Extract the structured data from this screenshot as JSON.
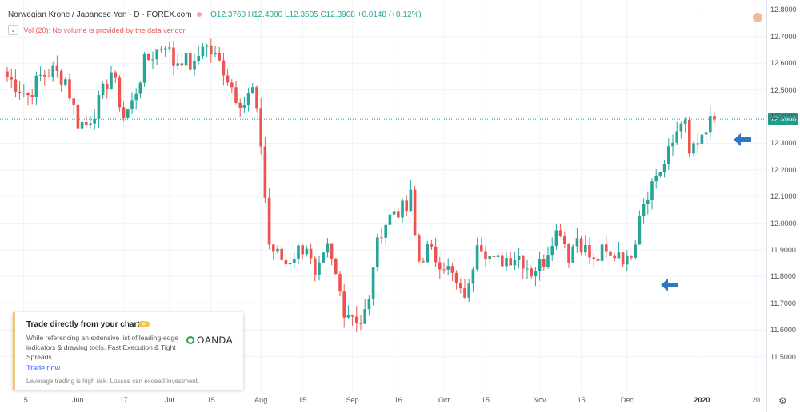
{
  "header": {
    "title": "Norwegian Krone / Japanese Yen · D · FOREX.com",
    "ohlc": "O12.3760 H12.4080 L12.3505 C12.3908 +0.0148 (+0.12%)",
    "volume_label": "Vol (20): No volume is provided by the data vendor."
  },
  "price_label": "12.3908",
  "ad": {
    "title": "Trade directly from your charts",
    "badge": "ad",
    "body": "While referencing an extensive list of leading-edge indicators & drawing tools. Fast Execution & Tight Spreads",
    "brand": "OANDA",
    "cta": "Trade now",
    "disclaimer": "Leverage trading is high risk. Losses can exceed investment."
  },
  "colors": {
    "up": "#26a69a",
    "down": "#ef5350",
    "arrow": "#2b79c2",
    "price_line": "#1f9c8a",
    "grid": "#f0f3fa"
  },
  "chart_data": {
    "type": "candlestick",
    "title": "Norwegian Krone / Japanese Yen",
    "ylim": [
      11.43,
      12.88
    ],
    "yticks": [
      11.5,
      11.6,
      11.7,
      11.8,
      11.9,
      12.0,
      12.1,
      12.2,
      12.3,
      12.4,
      12.5,
      12.6,
      12.7,
      12.8
    ],
    "xticks": [
      {
        "label": "15",
        "i": 4
      },
      {
        "label": "Jun",
        "i": 17
      },
      {
        "label": "17",
        "i": 28
      },
      {
        "label": "Jul",
        "i": 39
      },
      {
        "label": "15",
        "i": 49
      },
      {
        "label": "Aug",
        "i": 61
      },
      {
        "label": "15",
        "i": 71
      },
      {
        "label": "Sep",
        "i": 83
      },
      {
        "label": "16",
        "i": 94
      },
      {
        "label": "Oct",
        "i": 105
      },
      {
        "label": "15",
        "i": 115
      },
      {
        "label": "Nov",
        "i": 128
      },
      {
        "label": "15",
        "i": 138
      },
      {
        "label": "Dec",
        "i": 149
      },
      {
        "label": "2020",
        "i": 167,
        "bold": true
      },
      {
        "label": "20",
        "i": 180
      }
    ],
    "last_price": 12.3908,
    "anchors": [
      [
        0,
        12.55
      ],
      [
        2,
        12.52
      ],
      [
        5,
        12.48
      ],
      [
        8,
        12.55
      ],
      [
        11,
        12.57
      ],
      [
        14,
        12.54
      ],
      [
        17,
        12.38
      ],
      [
        19,
        12.37
      ],
      [
        22,
        12.45
      ],
      [
        25,
        12.57
      ],
      [
        28,
        12.4
      ],
      [
        30,
        12.45
      ],
      [
        33,
        12.6
      ],
      [
        36,
        12.65
      ],
      [
        38,
        12.68
      ],
      [
        40,
        12.6
      ],
      [
        42,
        12.62
      ],
      [
        45,
        12.58
      ],
      [
        47,
        12.68
      ],
      [
        50,
        12.62
      ],
      [
        52,
        12.58
      ],
      [
        55,
        12.48
      ],
      [
        57,
        12.45
      ],
      [
        59,
        12.5
      ],
      [
        61,
        12.3
      ],
      [
        62,
        12.1
      ],
      [
        63,
        11.92
      ],
      [
        65,
        11.88
      ],
      [
        67,
        11.85
      ],
      [
        70,
        11.9
      ],
      [
        72,
        11.92
      ],
      [
        74,
        11.78
      ],
      [
        77,
        11.9
      ],
      [
        79,
        11.8
      ],
      [
        81,
        11.68
      ],
      [
        83,
        11.66
      ],
      [
        85,
        11.63
      ],
      [
        87,
        11.7
      ],
      [
        88,
        11.85
      ],
      [
        90,
        11.98
      ],
      [
        93,
        12.05
      ],
      [
        96,
        12.05
      ],
      [
        97,
        12.1
      ],
      [
        98,
        11.95
      ],
      [
        99,
        11.86
      ],
      [
        101,
        11.9
      ],
      [
        103,
        11.87
      ],
      [
        105,
        11.85
      ],
      [
        107,
        11.8
      ],
      [
        109,
        11.73
      ],
      [
        111,
        11.75
      ],
      [
        113,
        11.95
      ],
      [
        115,
        11.9
      ],
      [
        117,
        11.85
      ],
      [
        120,
        11.87
      ],
      [
        123,
        11.88
      ],
      [
        126,
        11.82
      ],
      [
        129,
        11.86
      ],
      [
        131,
        11.95
      ],
      [
        133,
        11.98
      ],
      [
        135,
        11.88
      ],
      [
        137,
        11.95
      ],
      [
        139,
        11.9
      ],
      [
        141,
        11.85
      ],
      [
        143,
        11.89
      ],
      [
        145,
        11.87
      ],
      [
        147,
        11.9
      ],
      [
        149,
        11.85
      ],
      [
        150,
        11.9
      ],
      [
        151,
        11.95
      ],
      [
        152,
        12.05
      ],
      [
        154,
        12.12
      ],
      [
        156,
        12.18
      ],
      [
        158,
        12.22
      ],
      [
        160,
        12.3
      ],
      [
        162,
        12.4
      ],
      [
        163,
        12.36
      ],
      [
        164,
        12.25
      ],
      [
        165,
        12.3
      ],
      [
        166,
        12.27
      ],
      [
        167,
        12.32
      ],
      [
        169,
        12.37
      ],
      [
        170,
        12.39
      ]
    ]
  }
}
